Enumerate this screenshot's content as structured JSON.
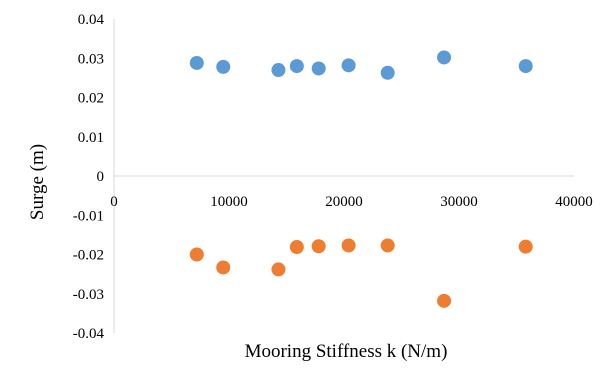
{
  "chart_data": {
    "type": "scatter",
    "title": "",
    "xlabel": "Mooring Stiffness k (N/m)",
    "ylabel": "Surge (m)",
    "xlim": [
      0,
      40000
    ],
    "ylim": [
      -0.04,
      0.04
    ],
    "x_ticks": [
      0,
      10000,
      20000,
      30000,
      40000
    ],
    "y_ticks": [
      0.04,
      0.03,
      0.02,
      0.01,
      0,
      -0.01,
      -0.02,
      -0.03,
      -0.04
    ],
    "x_tick_labels": [
      "0",
      "10000",
      "20000",
      "30000",
      "40000"
    ],
    "y_tick_labels": [
      "0.04",
      "0.03",
      "0.02",
      "0.01",
      "0",
      "-0.01",
      "-0.02",
      "-0.03",
      "-0.04"
    ],
    "grid": false,
    "legend": "none",
    "series": [
      {
        "color": "#5b9bd5",
        "points": [
          {
            "x": 7200,
            "y": 0.0288
          },
          {
            "x": 9500,
            "y": 0.0278
          },
          {
            "x": 14300,
            "y": 0.027
          },
          {
            "x": 15900,
            "y": 0.028
          },
          {
            "x": 17800,
            "y": 0.0274
          },
          {
            "x": 20400,
            "y": 0.0282
          },
          {
            "x": 23800,
            "y": 0.0263
          },
          {
            "x": 28700,
            "y": 0.0302
          },
          {
            "x": 35800,
            "y": 0.028
          }
        ]
      },
      {
        "color": "#ed7d31",
        "points": [
          {
            "x": 7200,
            "y": -0.02
          },
          {
            "x": 9500,
            "y": -0.0233
          },
          {
            "x": 14300,
            "y": -0.0238
          },
          {
            "x": 15900,
            "y": -0.0181
          },
          {
            "x": 17800,
            "y": -0.0179
          },
          {
            "x": 20400,
            "y": -0.0177
          },
          {
            "x": 23800,
            "y": -0.0177
          },
          {
            "x": 28700,
            "y": -0.0318
          },
          {
            "x": 35800,
            "y": -0.018
          }
        ]
      }
    ]
  }
}
